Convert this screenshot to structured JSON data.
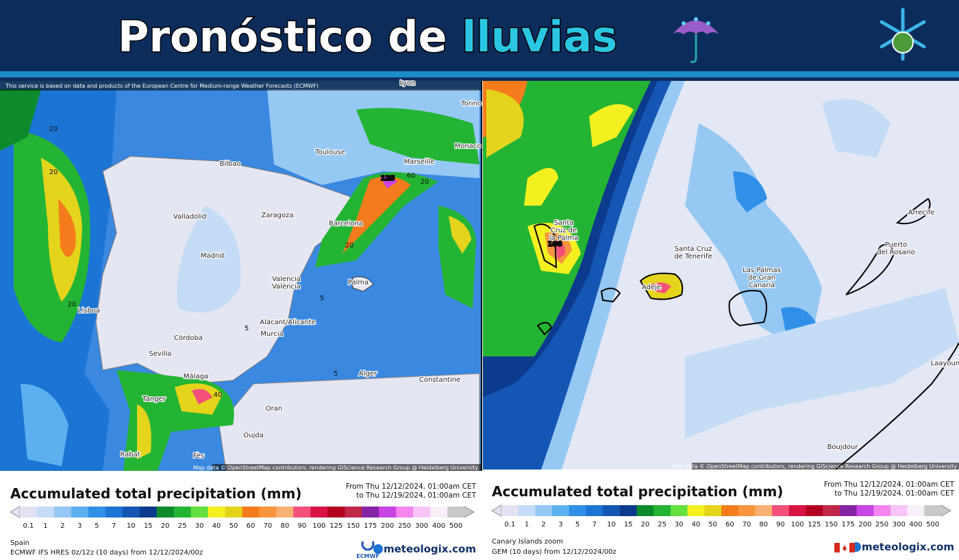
{
  "header": {
    "title": "Pronóstico de",
    "title_highlight": "lluvias"
  },
  "scale": [
    {
      "label": "0.1",
      "color": "#e2e2f2"
    },
    {
      "label": "1",
      "color": "#c4dcf6"
    },
    {
      "label": "2",
      "color": "#96c8f4"
    },
    {
      "label": "3",
      "color": "#5cb0f0"
    },
    {
      "label": "5",
      "color": "#3090e8"
    },
    {
      "label": "7",
      "color": "#1c74d4"
    },
    {
      "label": "10",
      "color": "#1456b4"
    },
    {
      "label": "15",
      "color": "#0c3a8c"
    },
    {
      "label": "20",
      "color": "#0c8a2c"
    },
    {
      "label": "25",
      "color": "#24b434"
    },
    {
      "label": "30",
      "color": "#64e040"
    },
    {
      "label": "40",
      "color": "#f4f020"
    },
    {
      "label": "50",
      "color": "#e4d41c"
    },
    {
      "label": "60",
      "color": "#f47c1c"
    },
    {
      "label": "70",
      "color": "#f8943c"
    },
    {
      "label": "80",
      "color": "#f8b074"
    },
    {
      "label": "90",
      "color": "#f4507c"
    },
    {
      "label": "100",
      "color": "#d81444"
    },
    {
      "label": "125",
      "color": "#b40020"
    },
    {
      "label": "150",
      "color": "#c02848"
    },
    {
      "label": "175",
      "color": "#8424a4"
    },
    {
      "label": "200",
      "color": "#c844e4"
    },
    {
      "label": "250",
      "color": "#f484f0"
    },
    {
      "label": "300",
      "color": "#f8c4f8"
    },
    {
      "label": "400",
      "color": "#f8f0f8"
    },
    {
      "label": "500",
      "color": "#c8c8c8"
    }
  ],
  "left_panel": {
    "attribution_top": "This service is based on data and products of the European Centre for Medium-range Weather Forecasts (ECMWF)",
    "attribution_bottom": "Map data © OpenStreetMap contributors, rendering GIScience Research Group @ Heidelberg University",
    "places": [
      [
        "Lyon"
      ],
      [
        "Torino"
      ],
      [
        "Toulouse"
      ],
      [
        "Bilbao"
      ],
      [
        "Marseille"
      ],
      [
        "Monaco"
      ],
      [
        "Valladolid"
      ],
      [
        "Zaragoza"
      ],
      [
        "Barcelona"
      ],
      [
        "Madrid"
      ],
      [
        "Valencia",
        "València"
      ],
      [
        "Palma"
      ],
      [
        "Lisboa"
      ],
      [
        "Alacant/Alicante"
      ],
      [
        "Murcia"
      ],
      [
        "Córdoba"
      ],
      [
        "Sevilla"
      ],
      [
        "Málaga"
      ],
      [
        "Alger"
      ],
      [
        "Constantine"
      ],
      [
        "Tanger"
      ],
      [
        "Oran"
      ],
      [
        "Oujda"
      ],
      [
        "Rabat"
      ],
      [
        "Fès"
      ]
    ],
    "value_labels": [
      "20",
      "20",
      "20",
      "125",
      "60",
      "20",
      "20",
      "40",
      "5",
      "5",
      "5"
    ],
    "title": "Accumulated total precipitation (mm)",
    "date_from": "From Thu 12/12/2024, 01:00am CET",
    "date_to": "to Thu 12/19/2024, 01:00am CET",
    "region": "Spain",
    "model": "ECMWF IFS HRES 0z/12z (10 days) from 12/12/2024/00z",
    "logo": "ECMWF",
    "brand": "meteologix.com"
  },
  "right_panel": {
    "attribution_bottom": "Map data © OpenStreetMap contributors, rendering GIScience Research Group @ Heidelberg University",
    "places": [
      [
        "Santa",
        "Cruz de",
        "la Palma"
      ],
      [
        "Santa Cruz",
        "de Tenerife"
      ],
      [
        "Adeje"
      ],
      [
        "Las Palmas",
        "de Gran",
        "Canaria"
      ],
      [
        "Puerto",
        "del Rosario"
      ],
      [
        "Arrecife"
      ],
      [
        "Boujdour"
      ],
      [
        "Laayoune"
      ]
    ],
    "value_labels": [
      "106"
    ],
    "title": "Accumulated total precipitation (mm)",
    "date_from": "From Thu 12/12/2024, 01:00am CET",
    "date_to": "to Thu 12/19/2024, 01:00am CET",
    "region": "Canary Islands zoom",
    "model": "GEM (10 days) from 12/12/2024/00z",
    "brand": "meteologix.com"
  }
}
